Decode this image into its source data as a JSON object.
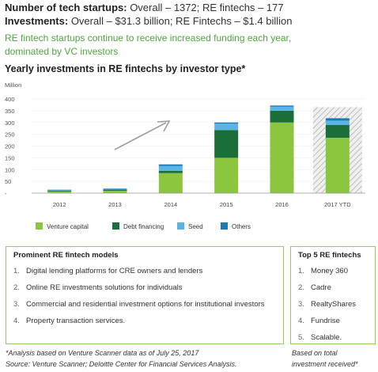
{
  "header": {
    "startups_label": "Number of tech startups:",
    "startups_value": " Overall – 1372; RE fintechs – 177",
    "investments_label": "Investments:",
    "investments_value": " Overall – $31.3 billion; RE Fintechs – $1.4 billion",
    "note_line1": "RE fintech startups continue to receive increased funding each year,",
    "note_line2": "dominated by VC investors"
  },
  "chart_title": "Yearly investments in RE fintechs by investor type*",
  "colors": {
    "venture": "#8cc63f",
    "debt": "#1a6e3a",
    "seed": "#5ab4e5",
    "others": "#1a7bb5",
    "axis": "#999999",
    "arrow": "#9e9e9e",
    "ytd_hatch": "#bdbdbd"
  },
  "chart_data": {
    "type": "bar",
    "stacked": true,
    "ylabel": "Million",
    "ylim": [
      0,
      400
    ],
    "yticks": [
      "400",
      "350",
      "300",
      "250",
      "200",
      "150",
      "100",
      "50",
      "-"
    ],
    "categories": [
      "2012",
      "2013",
      "2014",
      "2015",
      "2016",
      "2017 YTD"
    ],
    "series": [
      {
        "name": "Venture capital",
        "color_key": "venture",
        "values": [
          7,
          10,
          85,
          150,
          300,
          235
        ]
      },
      {
        "name": "Debt financing",
        "color_key": "debt",
        "values": [
          4,
          5,
          10,
          118,
          50,
          55
        ]
      },
      {
        "name": "Seed",
        "color_key": "seed",
        "values": [
          3,
          4,
          20,
          27,
          17,
          18
        ]
      },
      {
        "name": "Others",
        "color_key": "others",
        "values": [
          1,
          1,
          7,
          5,
          5,
          10
        ]
      }
    ],
    "ytd_background_value": 365,
    "trend_arrow": true,
    "legend_position": "bottom"
  },
  "models_panel": {
    "title": "Prominent RE fintech models",
    "items": [
      {
        "num": "1.",
        "text": "Digital lending platforms for CRE owners and lenders"
      },
      {
        "num": "2.",
        "text": "Online RE investments solutions for individuals"
      },
      {
        "num": "3.",
        "text": "Commercial and residential investment options for institutional investors"
      },
      {
        "num": "4.",
        "text": "Property transaction services."
      }
    ]
  },
  "top5_panel": {
    "title": "Top 5 RE fintechs",
    "items": [
      {
        "num": "1.",
        "text": "Money 360"
      },
      {
        "num": "2.",
        "text": "Cadre"
      },
      {
        "num": "3.",
        "text": "RealtyShares"
      },
      {
        "num": "4.",
        "text": "Fundrise"
      },
      {
        "num": "5.",
        "text": "Scalable."
      }
    ]
  },
  "footnotes": {
    "left_line1": "*Analysis based on Venture Scanner data as of July 25, 2017",
    "left_line2": "Source: Venture Scanner; Deloitte Center for Financial Services Analysis.",
    "right_line1": "Based on total",
    "right_line2": "investment received*"
  }
}
